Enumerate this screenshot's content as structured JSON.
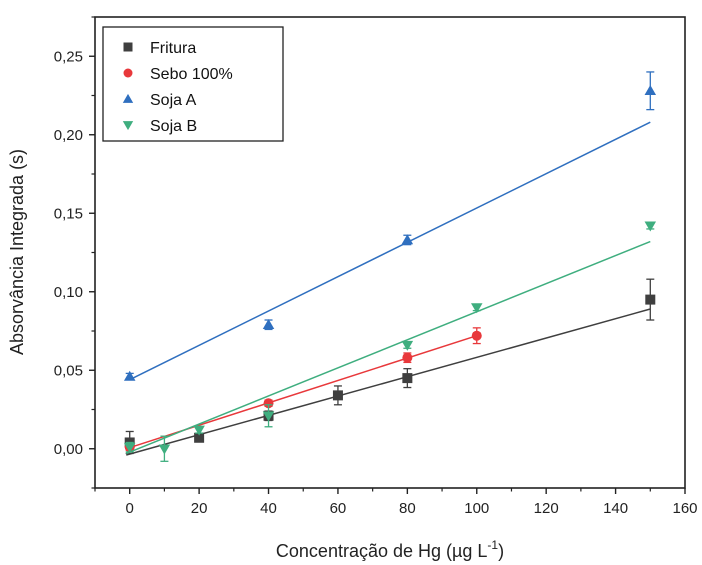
{
  "chart_data": {
    "type": "scatter",
    "xlabel": "Concentração de Hg (µg L",
    "xlabel_unit_exponent": "-1",
    "xlabel_close": ")",
    "ylabel": "Absorvância Integrada (s)",
    "xlim": [
      -10,
      160
    ],
    "ylim": [
      -0.025,
      0.275
    ],
    "x_ticks": [
      0,
      20,
      40,
      60,
      80,
      100,
      120,
      140,
      160
    ],
    "y_ticks": [
      0.0,
      0.05,
      0.1,
      0.15,
      0.2,
      0.25
    ],
    "x_tick_labels": [
      "0",
      "20",
      "40",
      "60",
      "80",
      "100",
      "120",
      "140",
      "160"
    ],
    "y_tick_labels": [
      "0,00",
      "0,05",
      "0,10",
      "0,15",
      "0,20",
      "0,25"
    ],
    "grid": false,
    "legend_position": "top-left",
    "series": [
      {
        "name": "Fritura",
        "marker": "square",
        "color": "#3f3f3f",
        "x": [
          0,
          20,
          40,
          60,
          80,
          150
        ],
        "y": [
          0.004,
          0.007,
          0.021,
          0.034,
          0.045,
          0.095
        ],
        "err": [
          0.007,
          0.002,
          0.003,
          0.006,
          0.006,
          0.013
        ],
        "fit": [
          [
            -1,
            -0.004
          ],
          [
            150,
            0.089
          ]
        ]
      },
      {
        "name": "Sebo 100%",
        "marker": "circle",
        "color": "#e8383b",
        "x": [
          0,
          40,
          80,
          100
        ],
        "y": [
          0.001,
          0.029,
          0.058,
          0.072
        ],
        "err": [
          0.002,
          0.002,
          0.003,
          0.005
        ],
        "fit": [
          [
            -1,
            0.0
          ],
          [
            100,
            0.072
          ]
        ]
      },
      {
        "name": "Soja A",
        "marker": "triangle-up",
        "color": "#2f6fbf",
        "x": [
          0,
          40,
          80,
          150
        ],
        "y": [
          0.046,
          0.079,
          0.133,
          0.228
        ],
        "err": [
          0.002,
          0.003,
          0.003,
          0.012
        ],
        "fit": [
          [
            0,
            0.044
          ],
          [
            150,
            0.208
          ]
        ]
      },
      {
        "name": "Soja B",
        "marker": "triangle-down",
        "color": "#3fae7f",
        "x": [
          0,
          10,
          20,
          40,
          80,
          100,
          150
        ],
        "y": [
          0.001,
          0.0,
          0.012,
          0.021,
          0.066,
          0.09,
          0.142
        ],
        "err": [
          0.003,
          0.008,
          0.002,
          0.007,
          0.002,
          0.002,
          0.002
        ],
        "fit": [
          [
            -1,
            -0.003
          ],
          [
            150,
            0.132
          ]
        ]
      }
    ]
  }
}
